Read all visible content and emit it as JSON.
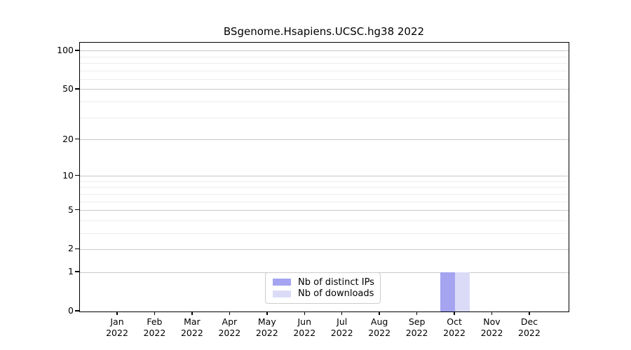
{
  "chart_data": {
    "type": "bar",
    "title": "BSgenome.Hsapiens.UCSC.hg38 2022",
    "xlabel": "",
    "ylabel": "",
    "categories": [
      "Jan 2022",
      "Feb 2022",
      "Mar 2022",
      "Apr 2022",
      "May 2022",
      "Jun 2022",
      "Jul 2022",
      "Aug 2022",
      "Sep 2022",
      "Oct 2022",
      "Nov 2022",
      "Dec 2022"
    ],
    "series": [
      {
        "name": "Nb of distinct IPs",
        "color": "#a4a4f1",
        "values": [
          0,
          0,
          0,
          0,
          0,
          0,
          0,
          0,
          0,
          1,
          0,
          0
        ]
      },
      {
        "name": "Nb of downloads",
        "color": "#dbdbf8",
        "values": [
          0,
          0,
          0,
          0,
          0,
          0,
          0,
          0,
          0,
          1,
          0,
          0
        ]
      }
    ],
    "yscale": "log1p",
    "ylim": [
      0,
      116
    ],
    "y_major_ticks": [
      100,
      50,
      20,
      10,
      5,
      2,
      1,
      0
    ],
    "y_minor_ticks": [
      3,
      4,
      6,
      7,
      8,
      9,
      30,
      40,
      60,
      70,
      80,
      90
    ],
    "grid": true,
    "legend": {
      "position": "inside-bottom-center",
      "entries": [
        "Nb of distinct IPs",
        "Nb of downloads"
      ]
    },
    "colors": {
      "major_grid": "#c9c9c9",
      "minor_grid": "#ededed",
      "axis": "#000000",
      "background": "#ffffff"
    }
  }
}
